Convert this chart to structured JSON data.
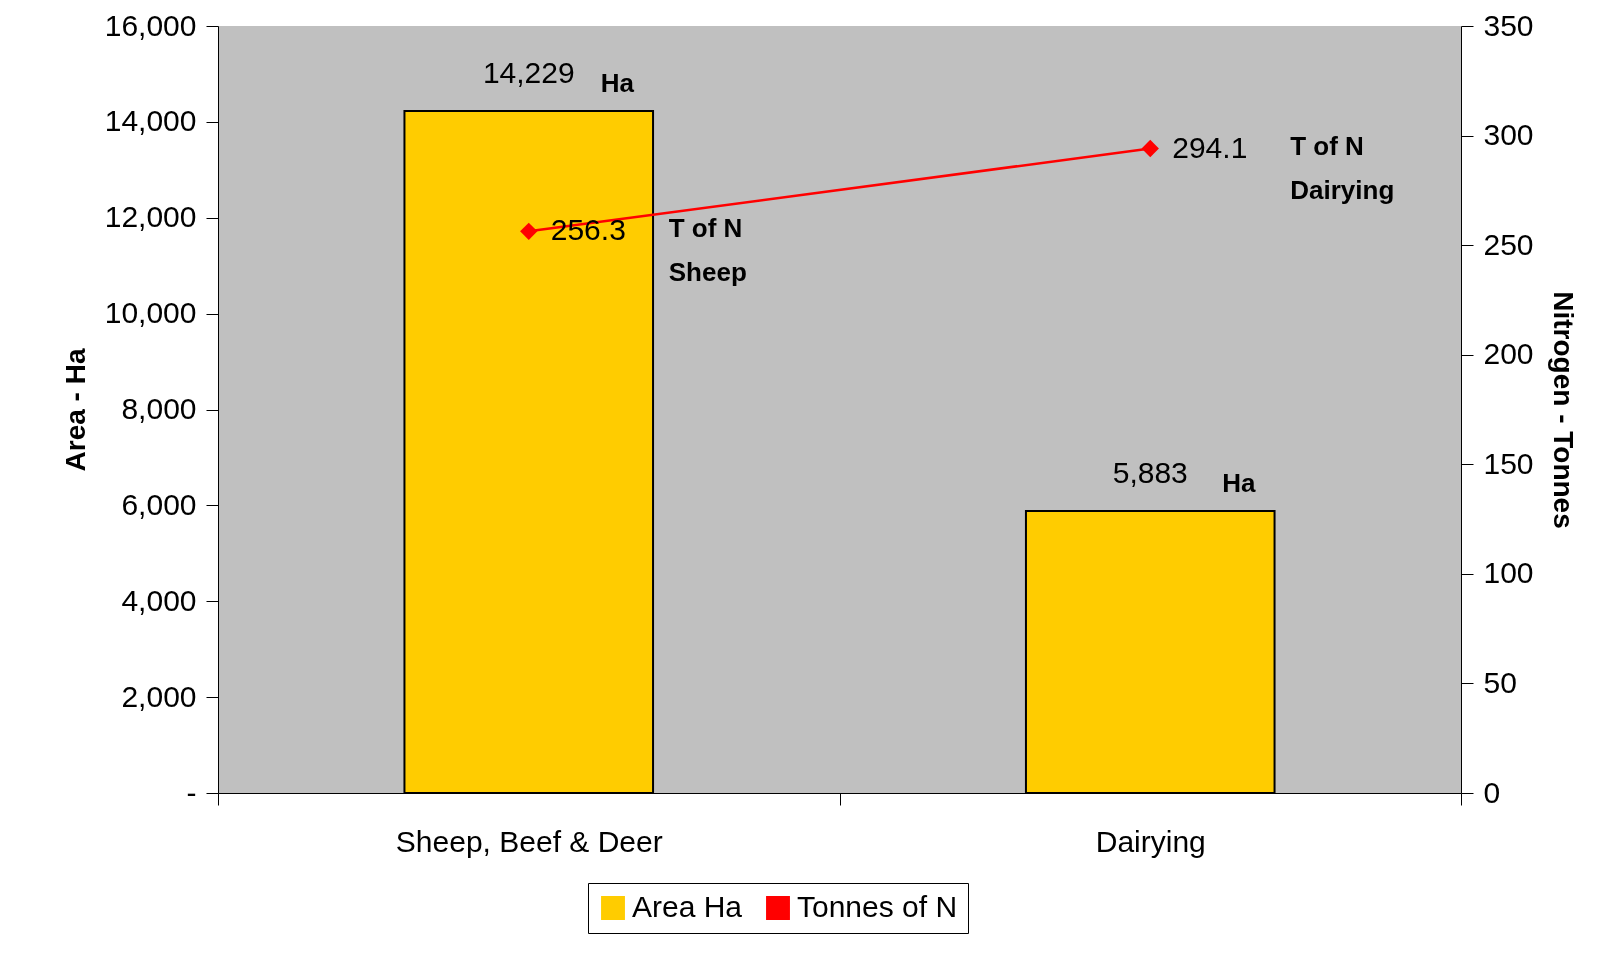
{
  "chart_data": {
    "type": "bar",
    "categories": [
      "Sheep, Beef & Deer",
      "Dairying"
    ],
    "series": [
      {
        "name": "Area Ha",
        "color": "#ffcc00",
        "values": [
          14229,
          5883
        ],
        "value_labels": [
          "14,229",
          "5,883"
        ]
      },
      {
        "name": "Tonnes of N",
        "type": "line",
        "axis": "y2",
        "color": "#ff0000",
        "values": [
          256.3,
          294.1
        ],
        "value_labels": [
          "256.3",
          "294.1"
        ]
      }
    ],
    "ylabel": "Area - Ha",
    "y2label": "Nitrogen - Tonnes",
    "ylim": [
      0,
      16000
    ],
    "yticks": [
      {
        "value": 0,
        "label": "-"
      },
      {
        "value": 2000,
        "label": "2,000"
      },
      {
        "value": 4000,
        "label": "4,000"
      },
      {
        "value": 6000,
        "label": "6,000"
      },
      {
        "value": 8000,
        "label": "8,000"
      },
      {
        "value": 10000,
        "label": "10,000"
      },
      {
        "value": 12000,
        "label": "12,000"
      },
      {
        "value": 14000,
        "label": "14,000"
      },
      {
        "value": 16000,
        "label": "16,000"
      }
    ],
    "y2lim": [
      0,
      350
    ],
    "y2ticks": [
      0,
      50,
      100,
      150,
      200,
      250,
      300,
      350
    ],
    "annotations": [
      {
        "text": "Ha",
        "x": "Sheep, Beef & Deer",
        "y": 14229
      },
      {
        "text": "Ha",
        "x": "Dairying",
        "y": 5883
      },
      "T of N\nSheep",
      "T of N\nDairying"
    ],
    "marker": "diamond",
    "grid": false,
    "legend": "bottom"
  }
}
